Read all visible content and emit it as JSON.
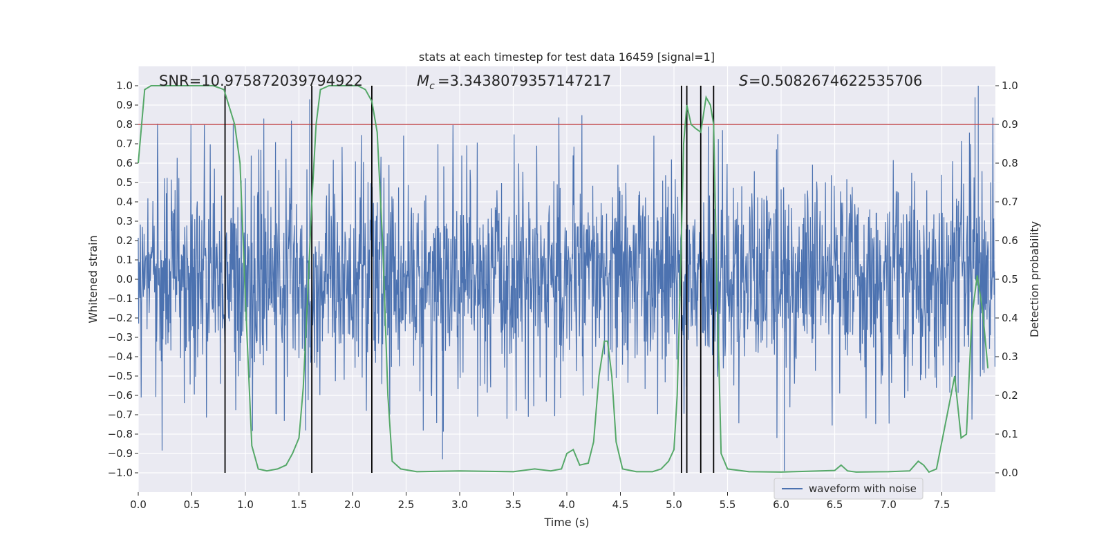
{
  "chart_data": {
    "type": "line",
    "title": "stats at each timestep for test data 16459 [signal=1]",
    "xlabel": "Time (s)",
    "ylabel": "Whitened strain",
    "y2label": "Detection probability",
    "xlim": [
      0.0,
      8.0
    ],
    "ylim": [
      -1.1,
      1.1
    ],
    "y2lim": [
      -0.05,
      1.05
    ],
    "x_ticks": [
      "0.0",
      "0.5",
      "1.0",
      "1.5",
      "2.0",
      "2.5",
      "3.0",
      "3.5",
      "4.0",
      "4.5",
      "5.0",
      "5.5",
      "6.0",
      "6.5",
      "7.0",
      "7.5"
    ],
    "y_ticks": [
      "1.0",
      "0.9",
      "0.8",
      "0.7",
      "0.6",
      "0.5",
      "0.4",
      "0.3",
      "0.2",
      "0.1",
      "0.0",
      "-0.1",
      "-0.2",
      "-0.3",
      "-0.4",
      "-0.5",
      "-0.6",
      "-0.7",
      "-0.8",
      "-0.9",
      "-1.0"
    ],
    "y2_ticks": [
      "1.0",
      "0.9",
      "0.8",
      "0.7",
      "0.6",
      "0.5",
      "0.4",
      "0.3",
      "0.2",
      "0.1",
      "0.0"
    ],
    "annotations": {
      "snr": "SNR=10.975872039794922",
      "mc": "=3.3438079357147217",
      "s": "=0.5082674622535706"
    },
    "threshold": {
      "y2": 0.9,
      "color": "#c44e52"
    },
    "vertical_lines_x": [
      0.81,
      1.62,
      2.18,
      5.07,
      5.12,
      5.25,
      5.37
    ],
    "series": [
      {
        "name": "waveform with noise",
        "color": "#4c72b0",
        "kind": "noise",
        "n_samples": 2048,
        "typical_amplitude": 0.25,
        "peak_amplitude": 1.0
      },
      {
        "name": "detection probability",
        "color": "#55a868",
        "axis": "right",
        "points": [
          [
            0.0,
            0.8
          ],
          [
            0.06,
            0.99
          ],
          [
            0.12,
            1.0
          ],
          [
            0.5,
            1.0
          ],
          [
            0.7,
            1.0
          ],
          [
            0.8,
            0.99
          ],
          [
            0.9,
            0.9
          ],
          [
            0.95,
            0.8
          ],
          [
            1.0,
            0.45
          ],
          [
            1.06,
            0.07
          ],
          [
            1.12,
            0.01
          ],
          [
            1.2,
            0.005
          ],
          [
            1.3,
            0.01
          ],
          [
            1.38,
            0.02
          ],
          [
            1.44,
            0.05
          ],
          [
            1.5,
            0.09
          ],
          [
            1.54,
            0.22
          ],
          [
            1.58,
            0.45
          ],
          [
            1.62,
            0.7
          ],
          [
            1.66,
            0.9
          ],
          [
            1.7,
            0.99
          ],
          [
            1.78,
            1.0
          ],
          [
            2.05,
            1.0
          ],
          [
            2.12,
            0.99
          ],
          [
            2.18,
            0.96
          ],
          [
            2.23,
            0.88
          ],
          [
            2.28,
            0.6
          ],
          [
            2.33,
            0.2
          ],
          [
            2.37,
            0.03
          ],
          [
            2.45,
            0.01
          ],
          [
            2.6,
            0.003
          ],
          [
            3.0,
            0.005
          ],
          [
            3.5,
            0.003
          ],
          [
            3.7,
            0.01
          ],
          [
            3.85,
            0.005
          ],
          [
            3.95,
            0.01
          ],
          [
            4.0,
            0.05
          ],
          [
            4.06,
            0.06
          ],
          [
            4.12,
            0.02
          ],
          [
            4.2,
            0.025
          ],
          [
            4.25,
            0.08
          ],
          [
            4.3,
            0.25
          ],
          [
            4.35,
            0.34
          ],
          [
            4.38,
            0.34
          ],
          [
            4.42,
            0.25
          ],
          [
            4.46,
            0.08
          ],
          [
            4.52,
            0.01
          ],
          [
            4.65,
            0.003
          ],
          [
            4.8,
            0.003
          ],
          [
            4.88,
            0.01
          ],
          [
            4.95,
            0.03
          ],
          [
            5.0,
            0.06
          ],
          [
            5.03,
            0.2
          ],
          [
            5.06,
            0.5
          ],
          [
            5.09,
            0.85
          ],
          [
            5.12,
            0.95
          ],
          [
            5.16,
            0.9
          ],
          [
            5.2,
            0.89
          ],
          [
            5.25,
            0.88
          ],
          [
            5.3,
            0.97
          ],
          [
            5.34,
            0.95
          ],
          [
            5.37,
            0.9
          ],
          [
            5.4,
            0.5
          ],
          [
            5.44,
            0.05
          ],
          [
            5.5,
            0.01
          ],
          [
            5.7,
            0.003
          ],
          [
            6.0,
            0.002
          ],
          [
            6.5,
            0.006
          ],
          [
            6.56,
            0.02
          ],
          [
            6.62,
            0.005
          ],
          [
            6.7,
            0.002
          ],
          [
            7.0,
            0.003
          ],
          [
            7.2,
            0.005
          ],
          [
            7.28,
            0.03
          ],
          [
            7.33,
            0.02
          ],
          [
            7.38,
            0.002
          ],
          [
            7.45,
            0.01
          ],
          [
            7.55,
            0.15
          ],
          [
            7.62,
            0.25
          ],
          [
            7.68,
            0.09
          ],
          [
            7.73,
            0.1
          ],
          [
            7.78,
            0.4
          ],
          [
            7.83,
            0.51
          ],
          [
            7.88,
            0.42
          ],
          [
            7.93,
            0.27
          ]
        ]
      }
    ],
    "legend": {
      "position": "lower-right",
      "entries": [
        "waveform with noise"
      ]
    }
  }
}
